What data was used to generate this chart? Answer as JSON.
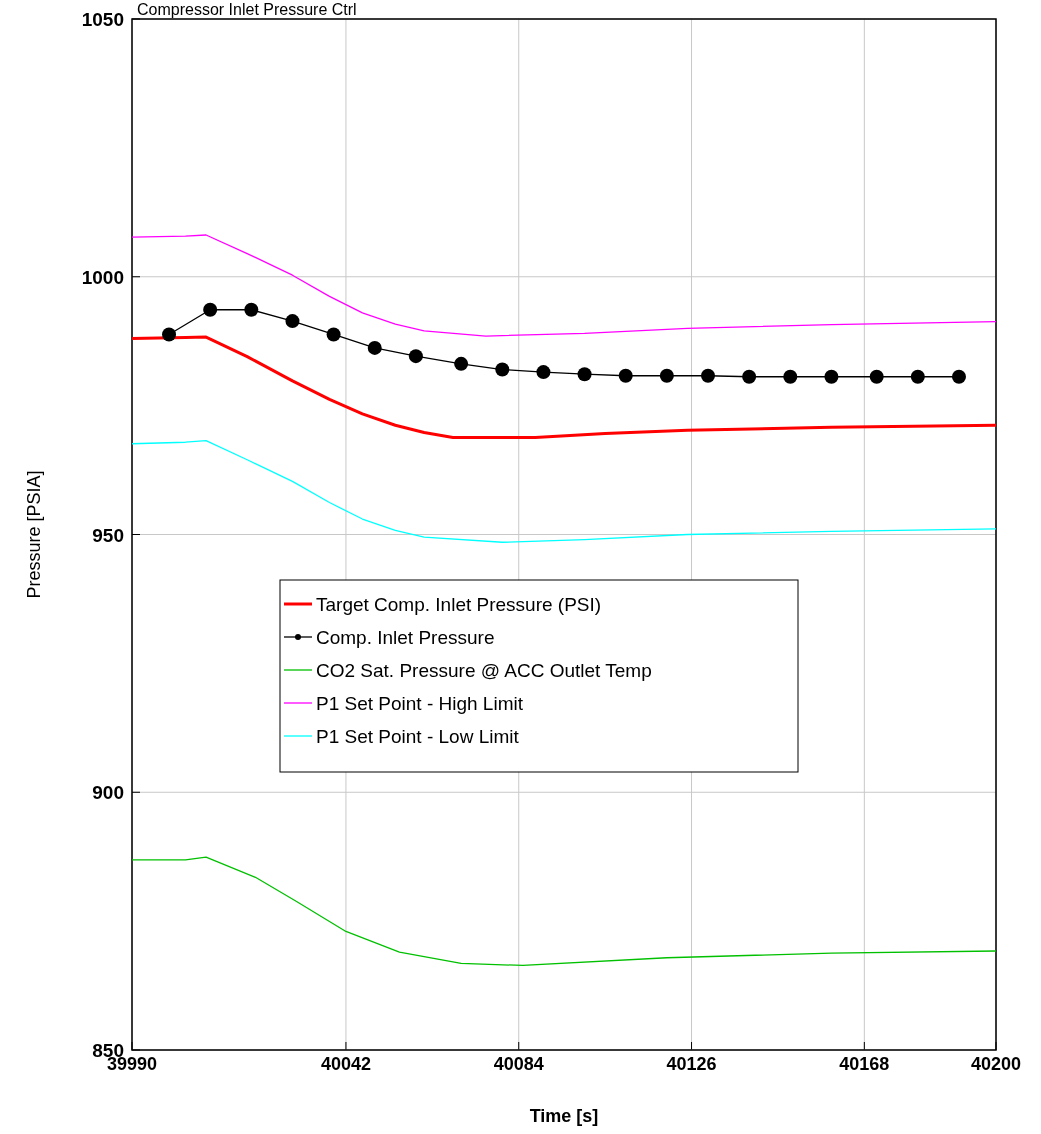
{
  "chart_data": {
    "type": "line",
    "title": "Compressor Inlet Pressure Ctrl",
    "xlabel": "Time [s]",
    "ylabel": "Pressure [PSIA]",
    "xlim": [
      39990,
      40200
    ],
    "xticks": [
      39990,
      40042,
      40084,
      40126,
      40168,
      40200
    ],
    "ylim": [
      850,
      1050
    ],
    "yticks": [
      850,
      900,
      950,
      1000,
      1050
    ],
    "grid": true,
    "legend": "center",
    "series": [
      {
        "name": "Target Comp. Inlet Pressure (PSI)",
        "color": "#ff0000",
        "x": [
          39990,
          40003,
          40008,
          40018,
          40029,
          40038,
          40046,
          40054,
          40061,
          40068,
          40088,
          40105,
          40125,
          40160,
          40200
        ],
        "values": [
          988.0,
          988.2,
          988.3,
          984.5,
          979.8,
          976.2,
          973.4,
          971.2,
          969.8,
          968.8,
          968.8,
          969.6,
          970.2,
          970.8,
          971.2
        ]
      },
      {
        "name": "Comp. Inlet Pressure",
        "color": "#000000",
        "marker": "circle",
        "x": [
          39999,
          40009,
          40019,
          40029,
          40039,
          40049,
          40059,
          40070,
          40080,
          40090,
          40100,
          40110,
          40120,
          40130,
          40140,
          40150,
          40160,
          40171,
          40181,
          40191
        ],
        "values": [
          988.8,
          993.6,
          993.6,
          991.4,
          988.8,
          986.2,
          984.6,
          983.1,
          982.0,
          981.5,
          981.1,
          980.8,
          980.8,
          980.8,
          980.6,
          980.6,
          980.6,
          980.6,
          980.6,
          980.6
        ]
      },
      {
        "name": "CO2 Sat. Pressure @ ACC Outlet Temp",
        "color": "#00c000",
        "x": [
          39990,
          40003,
          40008,
          40020,
          40030,
          40042,
          40055,
          40070,
          40085,
          40120,
          40160,
          40200
        ],
        "values": [
          886.9,
          886.9,
          887.4,
          883.5,
          878.8,
          873.0,
          869.0,
          866.8,
          866.4,
          867.9,
          868.8,
          869.2
        ]
      },
      {
        "name": "P1 Set Point - High Limit",
        "color": "#ff00ff",
        "x": [
          39990,
          40003,
          40008,
          40018,
          40029,
          40038,
          40046,
          40054,
          40061,
          40076,
          40100,
          40125,
          40160,
          40200
        ],
        "values": [
          1007.7,
          1007.9,
          1008.1,
          1004.5,
          1000.3,
          996.2,
          993.0,
          990.8,
          989.5,
          988.5,
          989.0,
          990.0,
          990.7,
          991.3
        ]
      },
      {
        "name": "P1 Set Point - Low Limit",
        "color": "#00ffff",
        "x": [
          39990,
          40003,
          40008,
          40018,
          40029,
          40038,
          40046,
          40054,
          40061,
          40080,
          40100,
          40125,
          40160,
          40200
        ],
        "values": [
          967.6,
          967.9,
          968.2,
          964.5,
          960.3,
          956.2,
          953.0,
          950.8,
          949.5,
          948.5,
          949.0,
          950.0,
          950.6,
          951.1
        ]
      }
    ]
  }
}
